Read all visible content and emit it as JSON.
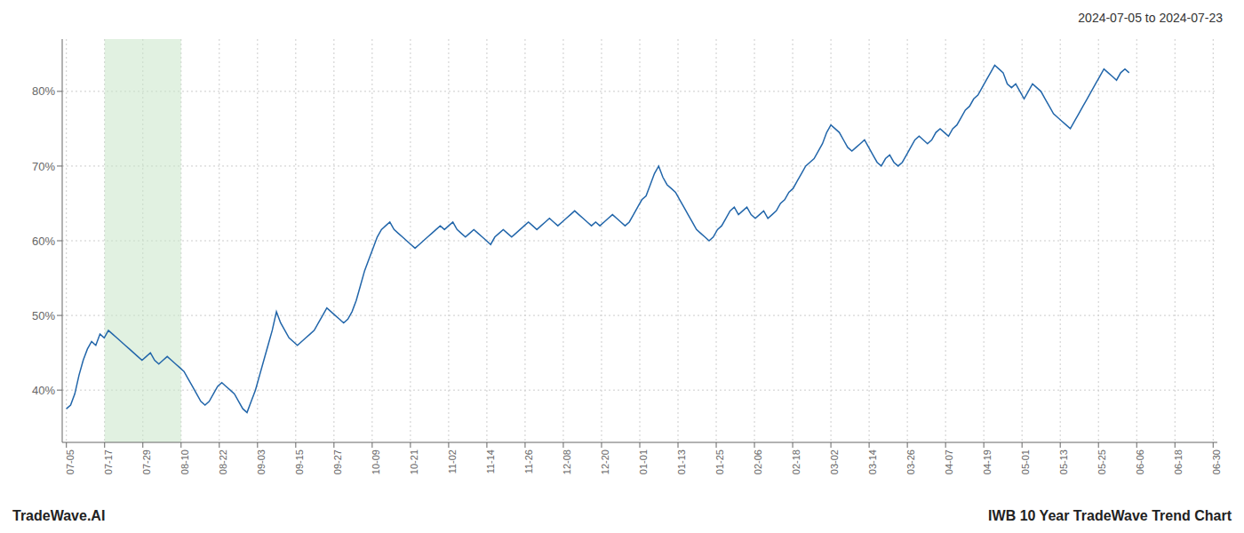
{
  "chart_data": {
    "type": "line",
    "title": "2024-07-05 to 2024-07-23",
    "footer_left": "TradeWave.AI",
    "footer_right": "IWB 10 Year TradeWave Trend Chart",
    "color": "#2266aa",
    "grid": true,
    "highlight_range": [
      9.1,
      27.3
    ],
    "highlight_color": "#c8e6c9",
    "xlim": [
      -1,
      274
    ],
    "xticks": [
      {
        "value": 0,
        "label": "07-05"
      },
      {
        "value": 9.1,
        "label": "07-17"
      },
      {
        "value": 18.2,
        "label": "07-29"
      },
      {
        "value": 27.3,
        "label": "08-10"
      },
      {
        "value": 36.4,
        "label": "08-22"
      },
      {
        "value": 45.5,
        "label": "09-03"
      },
      {
        "value": 54.6,
        "label": "09-15"
      },
      {
        "value": 63.7,
        "label": "09-27"
      },
      {
        "value": 72.8,
        "label": "10-09"
      },
      {
        "value": 81.9,
        "label": "10-21"
      },
      {
        "value": 91,
        "label": "11-02"
      },
      {
        "value": 100.1,
        "label": "11-14"
      },
      {
        "value": 109.2,
        "label": "11-26"
      },
      {
        "value": 118.3,
        "label": "12-08"
      },
      {
        "value": 127.4,
        "label": "12-20"
      },
      {
        "value": 136.5,
        "label": "01-01"
      },
      {
        "value": 145.6,
        "label": "01-13"
      },
      {
        "value": 154.7,
        "label": "01-25"
      },
      {
        "value": 163.8,
        "label": "02-06"
      },
      {
        "value": 172.9,
        "label": "02-18"
      },
      {
        "value": 182,
        "label": "03-02"
      },
      {
        "value": 191.1,
        "label": "03-14"
      },
      {
        "value": 200.2,
        "label": "03-26"
      },
      {
        "value": 209.3,
        "label": "04-07"
      },
      {
        "value": 218.4,
        "label": "04-19"
      },
      {
        "value": 227.5,
        "label": "05-01"
      },
      {
        "value": 236.6,
        "label": "05-13"
      },
      {
        "value": 245.7,
        "label": "05-25"
      },
      {
        "value": 254.8,
        "label": "06-06"
      },
      {
        "value": 263.9,
        "label": "06-18"
      },
      {
        "value": 273,
        "label": "06-30"
      }
    ],
    "ylim": [
      33,
      87
    ],
    "yticks": [
      {
        "value": 40,
        "label": "40%"
      },
      {
        "value": 50,
        "label": "50%"
      },
      {
        "value": 60,
        "label": "60%"
      },
      {
        "value": 70,
        "label": "70%"
      },
      {
        "value": 80,
        "label": "80%"
      }
    ],
    "values": [
      37.5,
      38.0,
      39.5,
      42.0,
      44.0,
      45.5,
      46.5,
      46.0,
      47.5,
      47.0,
      48.0,
      47.5,
      47.0,
      46.5,
      46.0,
      45.5,
      45.0,
      44.5,
      44.0,
      44.5,
      45.0,
      44.0,
      43.5,
      44.0,
      44.5,
      44.0,
      43.5,
      43.0,
      42.5,
      41.5,
      40.5,
      39.5,
      38.5,
      38.0,
      38.5,
      39.5,
      40.5,
      41.0,
      40.5,
      40.0,
      39.5,
      38.5,
      37.5,
      37.0,
      38.5,
      40.0,
      42.0,
      44.0,
      46.0,
      48.0,
      50.5,
      49.0,
      48.0,
      47.0,
      46.5,
      46.0,
      46.5,
      47.0,
      47.5,
      48.0,
      49.0,
      50.0,
      51.0,
      50.5,
      50.0,
      49.5,
      49.0,
      49.5,
      50.5,
      52.0,
      54.0,
      56.0,
      57.5,
      59.0,
      60.5,
      61.5,
      62.0,
      62.5,
      61.5,
      61.0,
      60.5,
      60.0,
      59.5,
      59.0,
      59.5,
      60.0,
      60.5,
      61.0,
      61.5,
      62.0,
      61.5,
      62.0,
      62.5,
      61.5,
      61.0,
      60.5,
      61.0,
      61.5,
      61.0,
      60.5,
      60.0,
      59.5,
      60.5,
      61.0,
      61.5,
      61.0,
      60.5,
      61.0,
      61.5,
      62.0,
      62.5,
      62.0,
      61.5,
      62.0,
      62.5,
      63.0,
      62.5,
      62.0,
      62.5,
      63.0,
      63.5,
      64.0,
      63.5,
      63.0,
      62.5,
      62.0,
      62.5,
      62.0,
      62.5,
      63.0,
      63.5,
      63.0,
      62.5,
      62.0,
      62.5,
      63.5,
      64.5,
      65.5,
      66.0,
      67.5,
      69.0,
      70.0,
      68.5,
      67.5,
      67.0,
      66.5,
      65.5,
      64.5,
      63.5,
      62.5,
      61.5,
      61.0,
      60.5,
      60.0,
      60.5,
      61.5,
      62.0,
      63.0,
      64.0,
      64.5,
      63.5,
      64.0,
      64.5,
      63.5,
      63.0,
      63.5,
      64.0,
      63.0,
      63.5,
      64.0,
      65.0,
      65.5,
      66.5,
      67.0,
      68.0,
      69.0,
      70.0,
      70.5,
      71.0,
      72.0,
      73.0,
      74.5,
      75.5,
      75.0,
      74.5,
      73.5,
      72.5,
      72.0,
      72.5,
      73.0,
      73.5,
      72.5,
      71.5,
      70.5,
      70.0,
      71.0,
      71.5,
      70.5,
      70.0,
      70.5,
      71.5,
      72.5,
      73.5,
      74.0,
      73.5,
      73.0,
      73.5,
      74.5,
      75.0,
      74.5,
      74.0,
      75.0,
      75.5,
      76.5,
      77.5,
      78.0,
      79.0,
      79.5,
      80.5,
      81.5,
      82.5,
      83.5,
      83.0,
      82.5,
      81.0,
      80.5,
      81.0,
      80.0,
      79.0,
      80.0,
      81.0,
      80.5,
      80.0,
      79.0,
      78.0,
      77.0,
      76.5,
      76.0,
      75.5,
      75.0,
      76.0,
      77.0,
      78.0,
      79.0,
      80.0,
      81.0,
      82.0,
      83.0,
      82.5,
      82.0,
      81.5,
      82.5,
      83.0,
      82.5
    ]
  }
}
